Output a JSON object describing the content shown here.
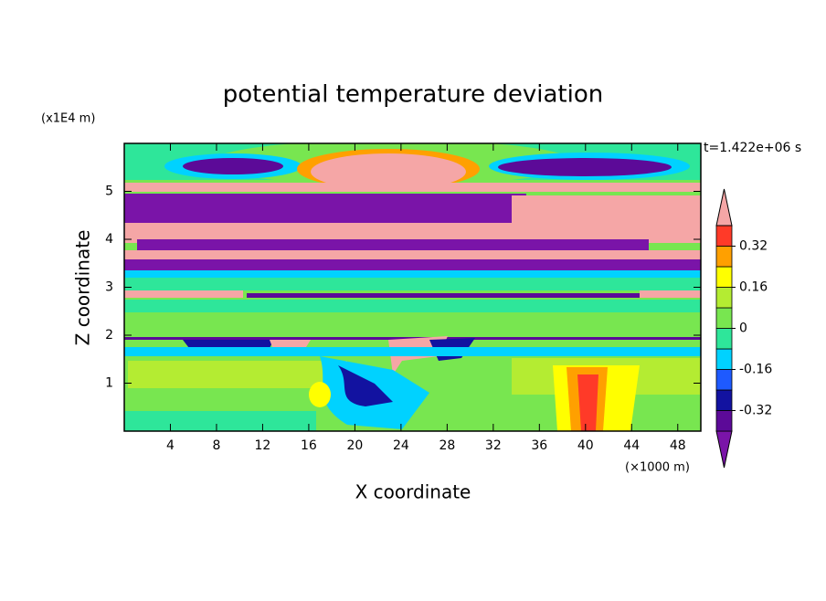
{
  "chart_data": {
    "type": "contour",
    "title": "potential temperature deviation",
    "x_label": "X coordinate",
    "y_label": "Z coordinate",
    "x_unit": "(×1000 m)",
    "y_unit": "(x1E4 m)",
    "annotation": "t=1.422e+06 s",
    "xlim": [
      0,
      50
    ],
    "xticks": [
      4,
      8,
      12,
      16,
      20,
      24,
      28,
      32,
      36,
      40,
      44,
      48
    ],
    "ylim": [
      0,
      6
    ],
    "yticks": [
      1,
      2,
      3,
      4,
      5
    ],
    "colorbar": {
      "clim": [
        -0.4,
        0.4
      ],
      "levels": [
        -0.4,
        -0.32,
        -0.24,
        -0.16,
        -0.08,
        0,
        0.08,
        0.16,
        0.24,
        0.32,
        0.4
      ],
      "ticks": [
        -0.32,
        -0.16,
        0,
        0.16,
        0.32
      ],
      "colors": [
        "#7a14a8",
        "#5c0a98",
        "#1212a0",
        "#1e5aff",
        "#00d2ff",
        "#2ee69a",
        "#78e650",
        "#b4ec32",
        "#ffff00",
        "#ffa000",
        "#ff3a28",
        "#f5a6a6"
      ]
    }
  }
}
